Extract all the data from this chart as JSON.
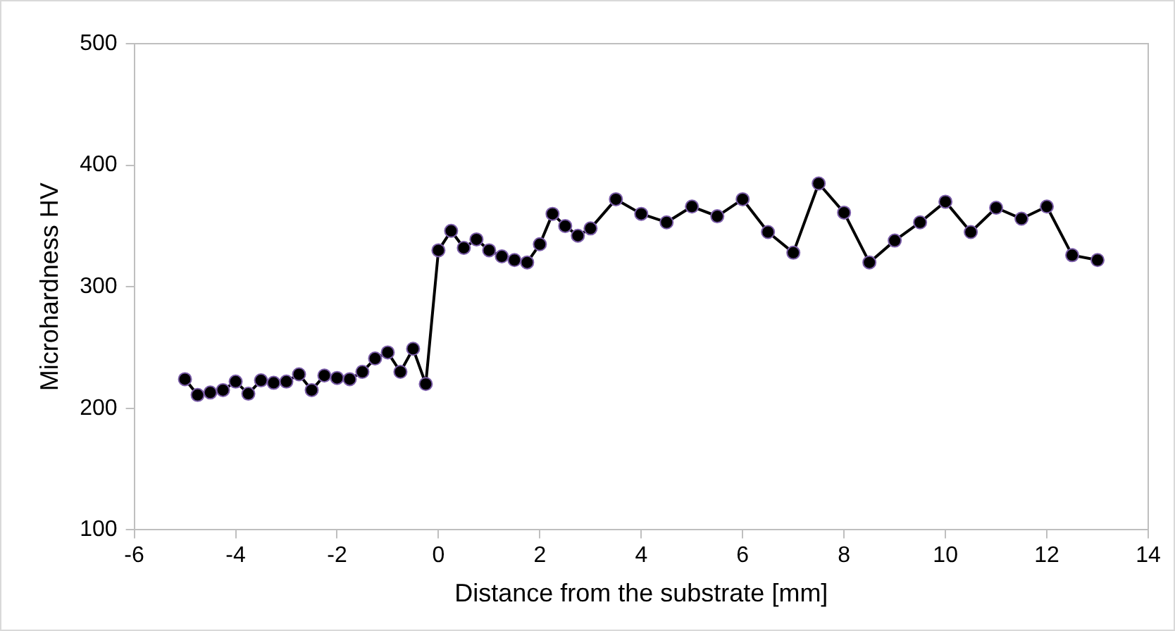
{
  "chart_data": {
    "type": "line",
    "xlabel": "Distance from the substrate [mm]",
    "ylabel": "Microhardness HV",
    "xlim": [
      -6,
      14
    ],
    "xticks": [
      -6,
      -4,
      -2,
      0,
      2,
      4,
      6,
      8,
      10,
      12,
      14
    ],
    "ylim": [
      100,
      500
    ],
    "yticks": [
      100,
      200,
      300,
      400,
      500
    ],
    "grid": false,
    "legend": false,
    "marker": "circle",
    "line_style": "solid",
    "series": [
      {
        "color": "#000000",
        "x": [
          -5,
          -4.75,
          -4.5,
          -4.25,
          -4,
          -3.75,
          -3.5,
          -3.25,
          -3,
          -2.75,
          -2.5,
          -2.25,
          -2,
          -1.75,
          -1.5,
          -1.25,
          -1,
          -0.75,
          -0.5,
          -0.25,
          0,
          0.25,
          0.5,
          0.75,
          1,
          1.25,
          1.5,
          1.75,
          2,
          2.25,
          2.5,
          2.75,
          3,
          3.5,
          4,
          4.5,
          5,
          5.5,
          6,
          6.5,
          7,
          7.5,
          8,
          8.5,
          9,
          9.5,
          10,
          10.5,
          11,
          11.5,
          12,
          12.5,
          13
        ],
        "values": [
          224,
          211,
          213,
          215,
          222,
          212,
          223,
          221,
          222,
          228,
          215,
          227,
          225,
          224,
          230,
          241,
          246,
          230,
          249,
          220,
          330,
          346,
          332,
          339,
          330,
          325,
          322,
          320,
          335,
          360,
          350,
          342,
          348,
          372,
          360,
          353,
          366,
          358,
          372,
          345,
          328,
          385,
          361,
          320,
          338,
          353,
          370,
          345,
          365,
          356,
          366,
          326,
          322
        ]
      }
    ]
  }
}
